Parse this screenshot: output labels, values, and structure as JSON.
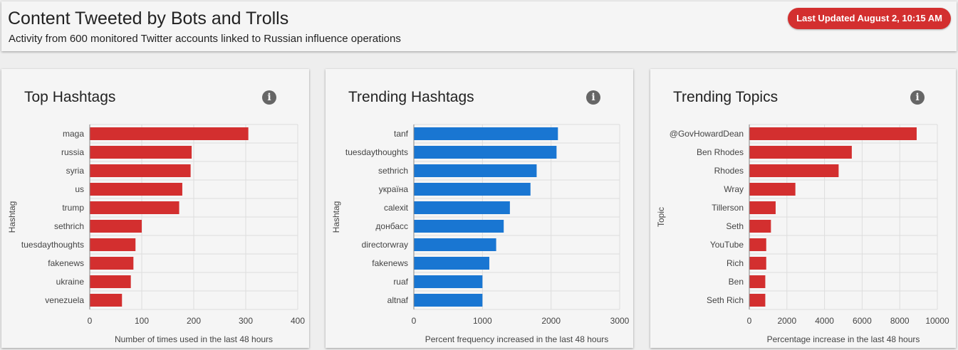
{
  "header": {
    "title": "Content Tweeted by Bots and Trolls",
    "subtitle": "Activity from 600 monitored Twitter accounts linked to Russian influence operations",
    "last_updated": "Last Updated August 2, 10:15 AM"
  },
  "colors": {
    "red": "#d32f2f",
    "blue": "#1976d2"
  },
  "icons": {
    "info": "info-icon"
  },
  "chart_data": [
    {
      "type": "bar",
      "orientation": "horizontal",
      "title": "Top Hashtags",
      "ylabel": "Hashtag",
      "xlabel": "Number of times used in the last 48 hours",
      "categories": [
        "maga",
        "russia",
        "syria",
        "us",
        "trump",
        "sethrich",
        "tuesdaythoughts",
        "fakenews",
        "ukraine",
        "venezuela"
      ],
      "values": [
        305,
        196,
        194,
        178,
        172,
        100,
        88,
        84,
        79,
        62
      ],
      "xlim": [
        0,
        400
      ],
      "ticks": [
        0,
        100,
        200,
        300,
        400
      ],
      "color": "#d32f2f"
    },
    {
      "type": "bar",
      "orientation": "horizontal",
      "title": "Trending Hashtags",
      "ylabel": "Hashtag",
      "xlabel": "Percent frequency increased in the last 48 hours",
      "categories": [
        "tanf",
        "tuesdaythoughts",
        "sethrich",
        "україна",
        "calexit",
        "донбасс",
        "directorwray",
        "fakenews",
        "ruaf",
        "altnaf"
      ],
      "values": [
        2100,
        2080,
        1790,
        1700,
        1400,
        1310,
        1200,
        1100,
        1000,
        1000
      ],
      "xlim": [
        0,
        3000
      ],
      "ticks": [
        0,
        1000,
        2000,
        3000
      ],
      "color": "#1976d2"
    },
    {
      "type": "bar",
      "orientation": "horizontal",
      "title": "Trending Topics",
      "ylabel": "Topic",
      "xlabel": "Percentage increase in the last 48 hours",
      "categories": [
        "@GovHowardDean",
        "Ben Rhodes",
        "Rhodes",
        "Wray",
        "Tillerson",
        "Seth",
        "YouTube",
        "Rich",
        "Ben",
        "Seth Rich"
      ],
      "values": [
        8900,
        5450,
        4750,
        2450,
        1400,
        1150,
        900,
        900,
        850,
        850
      ],
      "xlim": [
        0,
        10000
      ],
      "ticks": [
        0,
        2000,
        4000,
        6000,
        8000,
        10000
      ],
      "color": "#d32f2f"
    }
  ]
}
